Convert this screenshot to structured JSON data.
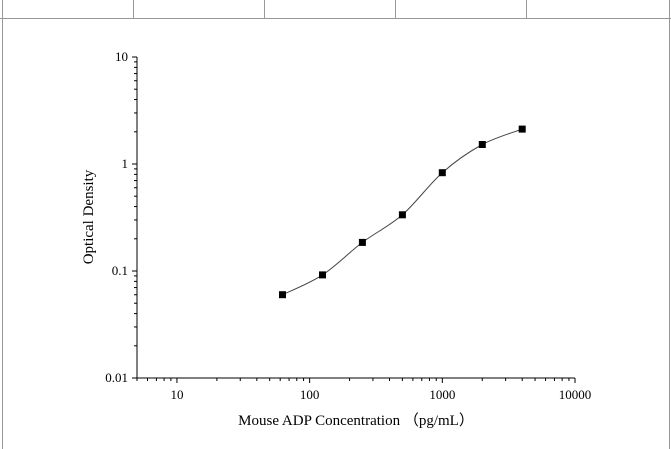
{
  "chart_data": {
    "type": "scatter",
    "title": "",
    "xlabel": "Mouse ADP Concentration （pg/mL）",
    "ylabel": "Optical Density",
    "x_scale": "log",
    "y_scale": "log",
    "xlim": [
      5,
      10000
    ],
    "ylim": [
      0.01,
      10
    ],
    "x_ticks": [
      "10",
      "100",
      "1000",
      "10000"
    ],
    "y_ticks": [
      "0.01",
      "0.1",
      "1",
      "10"
    ],
    "grid": false,
    "legend": "none",
    "series": [
      {
        "x": [
          62.5,
          125,
          250,
          500,
          1000,
          2000,
          4000
        ],
        "y": [
          0.06,
          0.092,
          0.185,
          0.335,
          0.83,
          1.52,
          2.12
        ]
      }
    ],
    "marker_color": "#000000",
    "line_color": "#444444"
  }
}
